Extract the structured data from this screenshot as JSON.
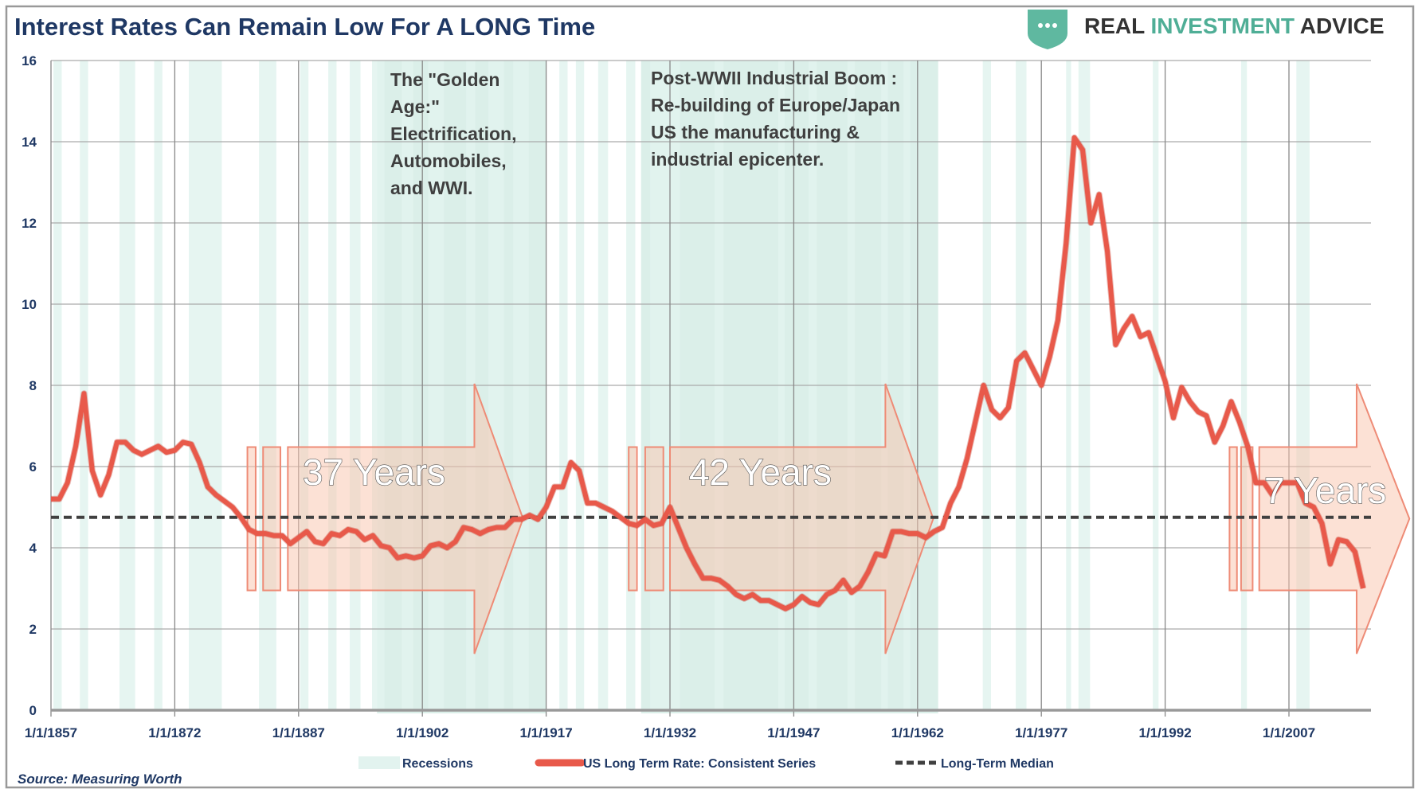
{
  "chart_data": {
    "type": "line",
    "title": "Interest Rates Can Remain Low For A LONG Time",
    "source": "Source: Measuring Worth",
    "logo": {
      "part1": "REAL",
      "part2": "INVESTMENT",
      "part3": "ADVICE"
    },
    "ylim": [
      0,
      16
    ],
    "yticks": [
      "0",
      "2",
      "4",
      "6",
      "8",
      "10",
      "12",
      "14",
      "16"
    ],
    "xlim": [
      1857,
      2017
    ],
    "xticks": [
      "1/1/1857",
      "1/1/1872",
      "1/1/1887",
      "1/1/1902",
      "1/1/1917",
      "1/1/1932",
      "1/1/1947",
      "1/1/1962",
      "1/1/1977",
      "1/1/1992",
      "1/1/2007"
    ],
    "grid": true,
    "legend_placement": "bottom",
    "legend": [
      "Recessions",
      "US Long Term Rate:  Consistent Series",
      "Long-Term Median"
    ],
    "colors": {
      "rate": "#e8594a",
      "median": "#404040",
      "recession": "#e2f3ef",
      "era": "#cfe9e2",
      "arrow_fill": "#f9c3ac",
      "arrow_stroke": "#ee8b76",
      "title": "#1f3864",
      "logo_green": "#4fae96"
    },
    "median": 4.75,
    "series": [
      {
        "name": "US Long Term Rate:  Consistent Series",
        "x": [
          1857,
          1858,
          1859,
          1860,
          1861,
          1862,
          1863,
          1864,
          1865,
          1866,
          1867,
          1868,
          1869,
          1870,
          1871,
          1872,
          1873,
          1874,
          1875,
          1876,
          1877,
          1878,
          1879,
          1880,
          1881,
          1882,
          1883,
          1884,
          1885,
          1886,
          1887,
          1888,
          1889,
          1890,
          1891,
          1892,
          1893,
          1894,
          1895,
          1896,
          1897,
          1898,
          1899,
          1900,
          1901,
          1902,
          1903,
          1904,
          1905,
          1906,
          1907,
          1908,
          1909,
          1910,
          1911,
          1912,
          1913,
          1914,
          1915,
          1916,
          1917,
          1918,
          1919,
          1920,
          1921,
          1922,
          1923,
          1924,
          1925,
          1926,
          1927,
          1928,
          1929,
          1930,
          1931,
          1932,
          1933,
          1934,
          1935,
          1936,
          1937,
          1938,
          1939,
          1940,
          1941,
          1942,
          1943,
          1944,
          1945,
          1946,
          1947,
          1948,
          1949,
          1950,
          1951,
          1952,
          1953,
          1954,
          1955,
          1956,
          1957,
          1958,
          1959,
          1960,
          1961,
          1962,
          1963,
          1964,
          1965,
          1966,
          1967,
          1968,
          1969,
          1970,
          1971,
          1972,
          1973,
          1974,
          1975,
          1976,
          1977,
          1978,
          1979,
          1980,
          1981,
          1982,
          1983,
          1984,
          1985,
          1986,
          1987,
          1988,
          1989,
          1990,
          1991,
          1992,
          1993,
          1994,
          1995,
          1996,
          1997,
          1998,
          1999,
          2000,
          2001,
          2002,
          2003,
          2004,
          2005,
          2006,
          2007,
          2008,
          2009,
          2010,
          2011,
          2012,
          2013,
          2014,
          2015,
          2016
        ],
        "values": [
          5.2,
          5.2,
          5.6,
          6.5,
          7.8,
          5.9,
          5.3,
          5.8,
          6.6,
          6.6,
          6.4,
          6.3,
          6.4,
          6.5,
          6.35,
          6.4,
          6.6,
          6.55,
          6.1,
          5.5,
          5.3,
          5.15,
          5.0,
          4.75,
          4.45,
          4.35,
          4.35,
          4.3,
          4.3,
          4.1,
          4.25,
          4.4,
          4.15,
          4.1,
          4.35,
          4.3,
          4.45,
          4.4,
          4.2,
          4.3,
          4.05,
          4.0,
          3.75,
          3.8,
          3.75,
          3.8,
          4.05,
          4.1,
          4.0,
          4.15,
          4.5,
          4.45,
          4.35,
          4.45,
          4.5,
          4.5,
          4.7,
          4.7,
          4.8,
          4.7,
          5.0,
          5.5,
          5.5,
          6.1,
          5.9,
          5.1,
          5.1,
          5.0,
          4.9,
          4.75,
          4.6,
          4.55,
          4.7,
          4.55,
          4.6,
          5.0,
          4.5,
          4.0,
          3.6,
          3.25,
          3.25,
          3.2,
          3.05,
          2.85,
          2.75,
          2.85,
          2.7,
          2.7,
          2.6,
          2.5,
          2.6,
          2.8,
          2.65,
          2.6,
          2.85,
          2.95,
          3.2,
          2.9,
          3.05,
          3.4,
          3.85,
          3.8,
          4.4,
          4.4,
          4.35,
          4.35,
          4.25,
          4.4,
          4.5,
          5.1,
          5.5,
          6.2,
          7.1,
          8.0,
          7.4,
          7.2,
          7.45,
          8.6,
          8.8,
          8.4,
          8.0,
          8.7,
          9.6,
          11.5,
          14.1,
          13.8,
          12.0,
          12.7,
          11.3,
          9.0,
          9.4,
          9.7,
          9.2,
          9.3,
          8.7,
          8.1,
          7.2,
          7.95,
          7.6,
          7.35,
          7.25,
          6.6,
          7.0,
          7.6,
          7.1,
          6.5,
          5.6,
          5.6,
          5.3,
          5.6,
          5.6,
          5.6,
          5.1,
          5.0,
          4.6,
          3.6,
          4.2,
          4.15,
          3.9,
          3.0
        ]
      }
    ],
    "recessions": [
      [
        1857.3,
        1858.3
      ],
      [
        1860.5,
        1861.5
      ],
      [
        1865.3,
        1867.2
      ],
      [
        1869.5,
        1870.5
      ],
      [
        1873.7,
        1877.7
      ],
      [
        1882.2,
        1884.3
      ],
      [
        1887.2,
        1888.2
      ],
      [
        1890.6,
        1891.6
      ],
      [
        1893.2,
        1894.5
      ],
      [
        1895.9,
        1897.4
      ],
      [
        1899.5,
        1900.9
      ],
      [
        1902.7,
        1904.6
      ],
      [
        1907.3,
        1908.4
      ],
      [
        1910.0,
        1911.9
      ],
      [
        1913.0,
        1914.9
      ],
      [
        1918.6,
        1919.6
      ],
      [
        1920.6,
        1921.6
      ],
      [
        1923.3,
        1924.5
      ],
      [
        1926.7,
        1927.8
      ],
      [
        1929.6,
        1933.2
      ],
      [
        1937.4,
        1938.5
      ],
      [
        1945.1,
        1945.9
      ],
      [
        1948.8,
        1949.8
      ],
      [
        1953.5,
        1954.4
      ],
      [
        1957.6,
        1958.4
      ],
      [
        1960.3,
        1961.1
      ],
      [
        1969.9,
        1970.9
      ],
      [
        1973.9,
        1975.2
      ],
      [
        1980.0,
        1980.6
      ],
      [
        1981.5,
        1982.9
      ],
      [
        1990.5,
        1991.2
      ],
      [
        2001.2,
        2001.9
      ],
      [
        2007.9,
        2009.5
      ]
    ],
    "eras": [
      [
        1896.5,
        1917.0
      ],
      [
        1928.5,
        1964.5
      ]
    ],
    "annotations": {
      "golden_age": [
        "The \"Golden",
        "Age:\"",
        "Electrification,",
        "Automobiles,",
        "and WWI."
      ],
      "post_wwii": [
        "Post-WWII Industrial Boom :",
        "Re-building of Europe/Japan",
        "US the manufacturing &",
        "industrial epicenter."
      ],
      "arrows": [
        "37 Years",
        "42 Years",
        "7 Years"
      ]
    }
  }
}
